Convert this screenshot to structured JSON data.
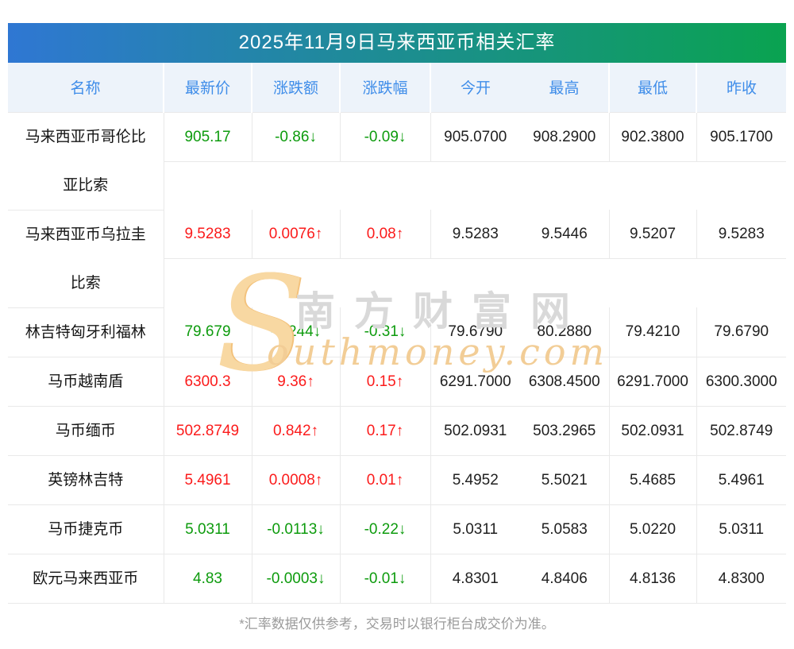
{
  "title": "2025年11月9日马来西亚币相关汇率",
  "footer": "*汇率数据仅供参考，交易时以银行柜台成交价为准。",
  "watermark": {
    "s": "S",
    "cn": "南方财富网",
    "en": "outhmoney.com"
  },
  "colors": {
    "title_gradient_left": "#2f77d3",
    "title_gradient_right": "#0aa350",
    "header_bg": "#edf3fa",
    "header_text": "#3f8de9",
    "up_red": "#fb1b1b",
    "down_green": "#0d9b0d",
    "grid_line": "#e9e9e9",
    "footnote_gray": "#9b9b9b"
  },
  "table": {
    "columns": [
      "名称",
      "最新价",
      "涨跌额",
      "涨跌幅",
      "今开",
      "最高",
      "最低",
      "昨收"
    ],
    "rows": [
      {
        "name": "马来西亚币哥伦比亚比索",
        "name_lines": [
          "马来西亚币哥伦比",
          "亚比索"
        ],
        "trend": "down",
        "latest": "905.17",
        "change": "-0.86↓",
        "pct": "-0.09↓",
        "open": "905.0700",
        "high": "908.2900",
        "low": "902.3800",
        "prev": "905.1700"
      },
      {
        "name": "马来西亚币乌拉圭比索",
        "name_lines": [
          "马来西亚币乌拉圭",
          "比索"
        ],
        "trend": "up",
        "latest": "9.5283",
        "change": "0.0076↑",
        "pct": "0.08↑",
        "open": "9.5283",
        "high": "9.5446",
        "low": "9.5207",
        "prev": "9.5283"
      },
      {
        "name": "林吉特匈牙利福林",
        "name_lines": [
          "林吉特匈牙利福林"
        ],
        "trend": "down",
        "latest": "79.679",
        "change": "-0.244↓",
        "pct": "-0.31↓",
        "open": "79.6790",
        "high": "80.2880",
        "low": "79.4210",
        "prev": "79.6790"
      },
      {
        "name": "马币越南盾",
        "name_lines": [
          "马币越南盾"
        ],
        "trend": "up",
        "latest": "6300.3",
        "change": "9.36↑",
        "pct": "0.15↑",
        "open": "6291.7000",
        "high": "6308.4500",
        "low": "6291.7000",
        "prev": "6300.3000"
      },
      {
        "name": "马币缅币",
        "name_lines": [
          "马币缅币"
        ],
        "trend": "up",
        "latest": "502.8749",
        "change": "0.842↑",
        "pct": "0.17↑",
        "open": "502.0931",
        "high": "503.2965",
        "low": "502.0931",
        "prev": "502.8749"
      },
      {
        "name": "英镑林吉特",
        "name_lines": [
          "英镑林吉特"
        ],
        "trend": "up",
        "latest": "5.4961",
        "change": "0.0008↑",
        "pct": "0.01↑",
        "open": "5.4952",
        "high": "5.5021",
        "low": "5.4685",
        "prev": "5.4961"
      },
      {
        "name": "马币捷克币",
        "name_lines": [
          "马币捷克币"
        ],
        "trend": "down",
        "latest": "5.0311",
        "change": "-0.0113↓",
        "pct": "-0.22↓",
        "open": "5.0311",
        "high": "5.0583",
        "low": "5.0220",
        "prev": "5.0311"
      },
      {
        "name": "欧元马来西亚币",
        "name_lines": [
          "欧元马来西亚币"
        ],
        "trend": "down",
        "latest": "4.83",
        "change": "-0.0003↓",
        "pct": "-0.01↓",
        "open": "4.8301",
        "high": "4.8406",
        "low": "4.8136",
        "prev": "4.8300"
      }
    ]
  }
}
